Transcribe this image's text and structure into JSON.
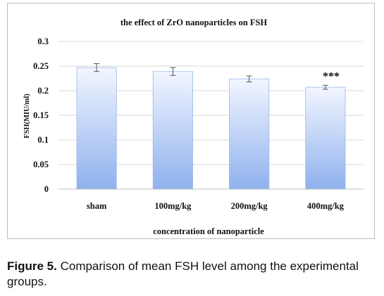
{
  "chart_data": {
    "type": "bar",
    "title": "the effect of ZrO  nanoparticles  on FSH",
    "xlabel": "concentration  of nanoparticle",
    "ylabel": "FSH(MIU/ml)",
    "categories": [
      "sham",
      "100mg/kg",
      "200mg/kg",
      "400mg/kg"
    ],
    "values": [
      0.247,
      0.239,
      0.224,
      0.207
    ],
    "errors": [
      0.008,
      0.008,
      0.006,
      0.004
    ],
    "annotations": [
      "",
      "",
      "",
      "***"
    ],
    "ylim": [
      0,
      0.3
    ],
    "yticks": [
      "0",
      "0.05",
      "0.1",
      "0.15",
      "0.2",
      "0.25",
      "0.3"
    ],
    "grid": true,
    "bar_color_top": "#f2f6ff",
    "bar_color_bottom": "#8fb1ee",
    "bar_border": "#9db6e8"
  },
  "caption": {
    "label": "Figure 5.",
    "text": " Comparison of mean FSH level among the experimental groups."
  }
}
